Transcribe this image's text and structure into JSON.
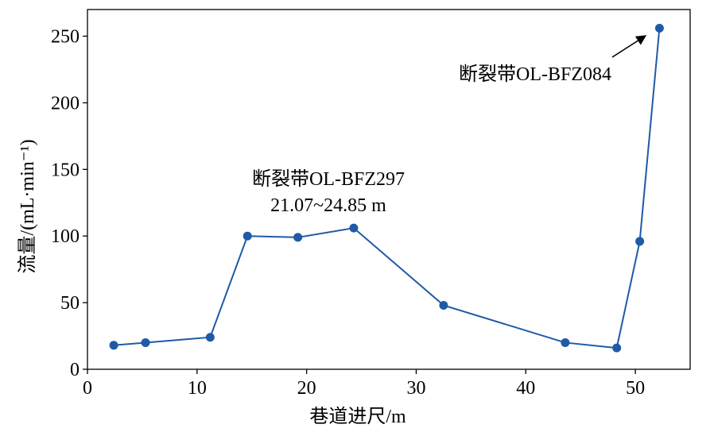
{
  "chart_data": {
    "type": "line",
    "xlabel": "巷道进尺/m",
    "ylabel": "流量/(mL·min⁻¹)",
    "x": [
      2.4,
      5.3,
      11.2,
      14.6,
      19.2,
      24.3,
      32.5,
      43.6,
      48.3,
      50.4,
      52.2
    ],
    "series": [
      {
        "color": "#1f5aa6",
        "values": [
          18,
          20,
          24,
          100,
          99,
          106,
          48,
          20,
          16,
          96,
          256
        ]
      }
    ],
    "xlim": [
      0,
      55
    ],
    "xticks": [
      0,
      10,
      20,
      30,
      40,
      50
    ],
    "ylim": [
      0,
      270
    ],
    "yticks": [
      0,
      50,
      100,
      150,
      200,
      250
    ],
    "annotations": [
      {
        "lines": [
          "断裂带OL-BFZ297",
          "21.07~24.85 m"
        ]
      },
      {
        "lines": [
          "断裂带OL-BFZ084"
        ]
      }
    ]
  }
}
